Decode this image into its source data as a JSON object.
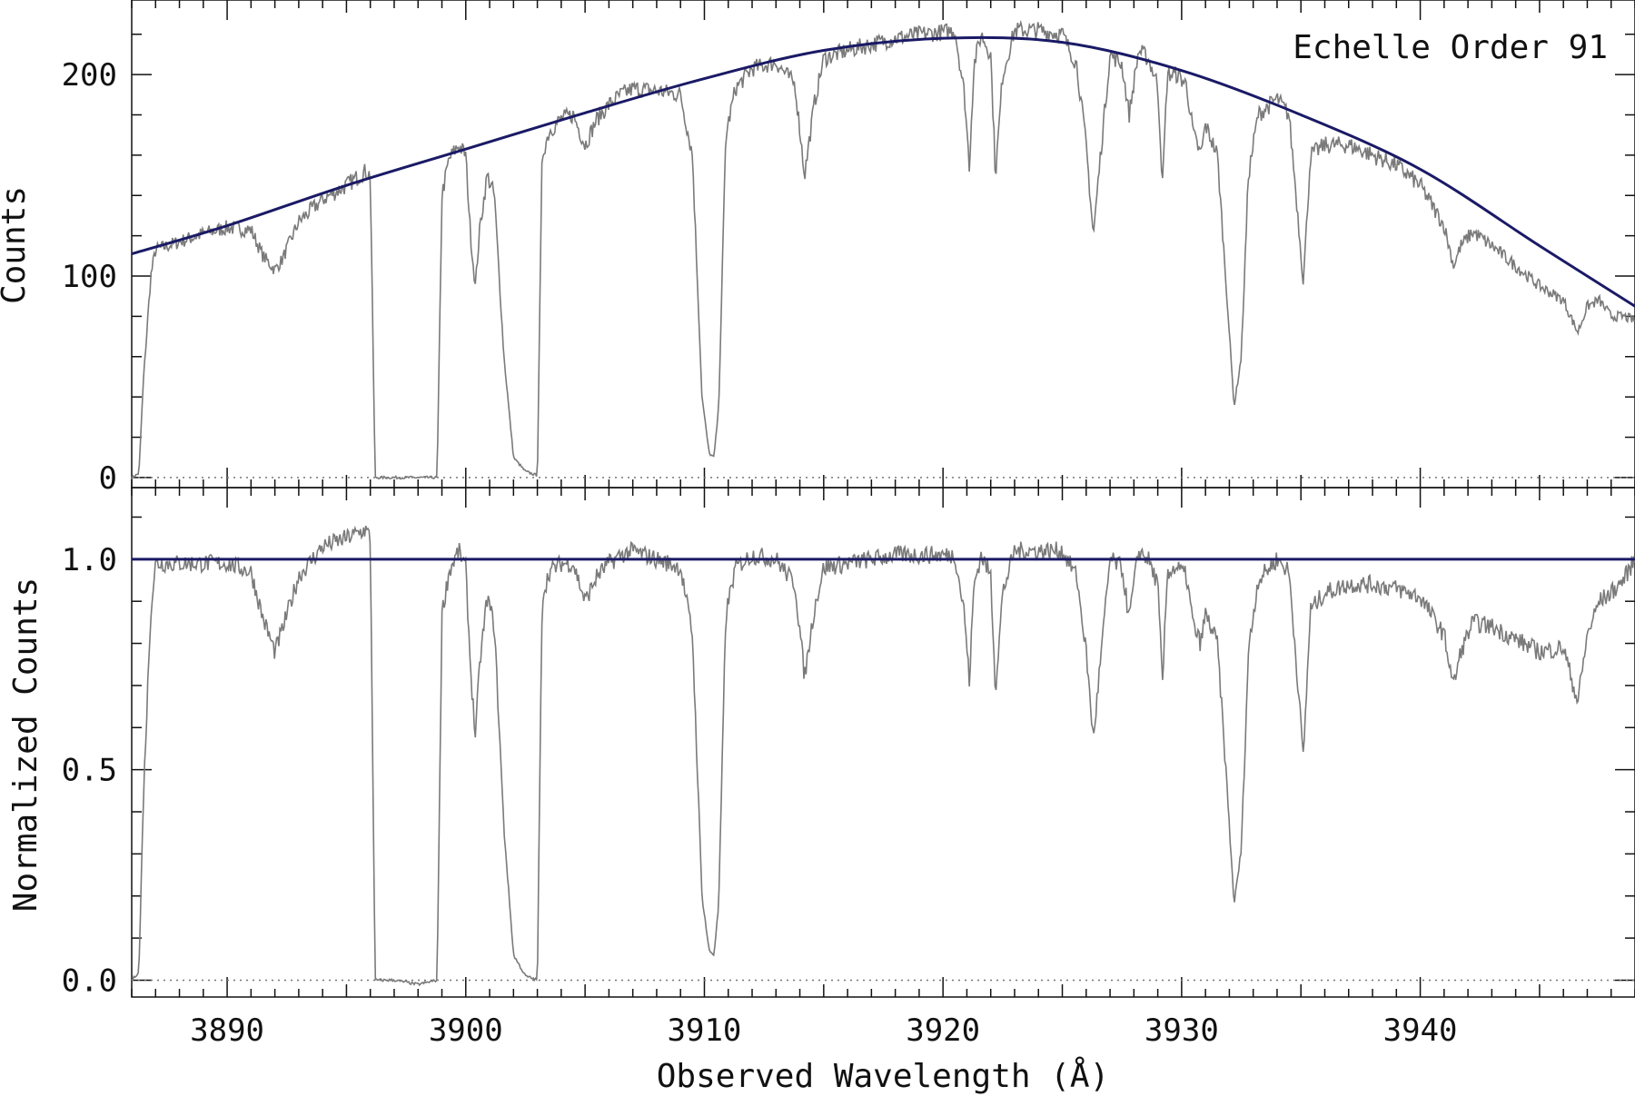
{
  "chart_data": [
    {
      "panel": "top",
      "type": "line",
      "title": "Echelle Order 91",
      "xlabel": "",
      "ylabel": "Counts",
      "xlim": [
        3886,
        3949
      ],
      "ylim": [
        -5,
        237
      ],
      "x_ticks": [
        3890,
        3900,
        3910,
        3920,
        3930,
        3940
      ],
      "x_tick_labels": [
        "",
        "",
        "",
        "",
        "",
        ""
      ],
      "y_ticks": [
        0,
        100,
        200
      ],
      "y_tick_labels": [
        "0",
        "100",
        "200"
      ],
      "zero_line": 0,
      "series": [
        {
          "name": "observed spectrum",
          "color": "#7a7a7a",
          "x": [
            3886.0,
            3886.3,
            3886.5,
            3886.8,
            3887.0,
            3888.0,
            3889.0,
            3890.0,
            3891.0,
            3891.5,
            3892.0,
            3892.3,
            3893.0,
            3894.0,
            3895.0,
            3895.8,
            3896.0,
            3896.2,
            3897.0,
            3898.0,
            3898.8,
            3899.0,
            3899.3,
            3899.7,
            3900.0,
            3900.2,
            3900.4,
            3900.6,
            3900.9,
            3901.2,
            3901.6,
            3902.0,
            3902.5,
            3903.0,
            3903.2,
            3903.5,
            3904.0,
            3904.5,
            3905.0,
            3905.5,
            3906.0,
            3906.5,
            3907.0,
            3908.0,
            3909.0,
            3909.5,
            3909.9,
            3910.2,
            3910.4,
            3910.6,
            3910.9,
            3911.3,
            3912.0,
            3913.0,
            3913.8,
            3914.2,
            3914.6,
            3915.0,
            3916.0,
            3917.0,
            3918.0,
            3919.0,
            3920.0,
            3920.5,
            3920.9,
            3921.1,
            3921.3,
            3921.6,
            3922.0,
            3922.2,
            3922.5,
            3923.0,
            3924.0,
            3925.0,
            3925.6,
            3926.0,
            3926.3,
            3926.6,
            3927.0,
            3927.5,
            3927.8,
            3928.2,
            3928.6,
            3929.0,
            3929.2,
            3929.4,
            3929.8,
            3930.2,
            3930.5,
            3930.8,
            3931.0,
            3931.5,
            3931.9,
            3932.2,
            3932.5,
            3932.8,
            3933.2,
            3934.0,
            3934.5,
            3934.8,
            3935.1,
            3935.4,
            3936.0,
            3937.0,
            3938.0,
            3939.0,
            3940.0,
            3941.0,
            3941.4,
            3941.7,
            3942.2,
            3943.0,
            3944.0,
            3945.0,
            3946.0,
            3946.6,
            3947.0,
            3947.5,
            3948.0,
            3948.5,
            3949.0
          ],
          "y": [
            0,
            2,
            50,
            100,
            113,
            117,
            121,
            124,
            123,
            110,
            103,
            108,
            127,
            138,
            145,
            152,
            150,
            0,
            0,
            0,
            0,
            140,
            158,
            165,
            160,
            120,
            95,
            125,
            150,
            140,
            60,
            10,
            3,
            1,
            160,
            172,
            178,
            180,
            165,
            178,
            185,
            190,
            193,
            192,
            190,
            160,
            40,
            12,
            10,
            35,
            170,
            193,
            203,
            206,
            195,
            150,
            185,
            208,
            212,
            215,
            218,
            220,
            221,
            222,
            190,
            155,
            205,
            220,
            210,
            150,
            200,
            222,
            222,
            220,
            205,
            165,
            120,
            160,
            210,
            205,
            180,
            212,
            208,
            195,
            145,
            200,
            200,
            195,
            170,
            160,
            175,
            160,
            90,
            35,
            60,
            150,
            180,
            188,
            180,
            140,
            97,
            160,
            165,
            165,
            160,
            155,
            145,
            125,
            105,
            115,
            122,
            115,
            105,
            95,
            88,
            72,
            85,
            88,
            80,
            80,
            78
          ]
        },
        {
          "name": "continuum fit",
          "color": "#1a1a66",
          "x": [
            3886,
            3890,
            3895,
            3900,
            3905,
            3910,
            3915,
            3920,
            3925,
            3930,
            3935,
            3940,
            3945,
            3949
          ],
          "y": [
            111,
            125,
            145,
            163,
            181,
            198,
            212,
            218,
            216,
            202,
            180,
            153,
            115,
            85
          ]
        }
      ]
    },
    {
      "panel": "bottom",
      "type": "line",
      "title": "",
      "xlabel": "Observed Wavelength (Å)",
      "ylabel": "Normalized Counts",
      "xlim": [
        3886,
        3949
      ],
      "ylim": [
        -0.04,
        1.17
      ],
      "x_ticks": [
        3890,
        3900,
        3910,
        3920,
        3930,
        3940
      ],
      "x_tick_labels": [
        "3890",
        "3900",
        "3910",
        "3920",
        "3930",
        "3940"
      ],
      "y_ticks": [
        0.0,
        0.5,
        1.0
      ],
      "y_tick_labels": [
        "0.0",
        "0.5",
        "1.0"
      ],
      "zero_line": 0.0,
      "series": [
        {
          "name": "normalized spectrum",
          "color": "#7a7a7a",
          "x": [
            3886.0,
            3886.3,
            3886.5,
            3886.8,
            3887.0,
            3888.0,
            3889.0,
            3890.0,
            3891.0,
            3891.5,
            3892.0,
            3892.3,
            3893.0,
            3894.0,
            3895.0,
            3895.8,
            3896.0,
            3896.2,
            3897.0,
            3898.0,
            3898.8,
            3899.0,
            3899.3,
            3899.7,
            3900.0,
            3900.2,
            3900.4,
            3900.6,
            3900.9,
            3901.2,
            3901.6,
            3902.0,
            3902.5,
            3903.0,
            3903.2,
            3903.5,
            3904.0,
            3904.5,
            3905.0,
            3905.5,
            3906.0,
            3906.5,
            3907.0,
            3908.0,
            3909.0,
            3909.5,
            3909.9,
            3910.2,
            3910.4,
            3910.6,
            3910.9,
            3911.3,
            3912.0,
            3913.0,
            3913.8,
            3914.2,
            3914.6,
            3915.0,
            3916.0,
            3917.0,
            3918.0,
            3919.0,
            3920.0,
            3920.5,
            3920.9,
            3921.1,
            3921.3,
            3921.6,
            3922.0,
            3922.2,
            3922.5,
            3923.0,
            3924.0,
            3925.0,
            3925.6,
            3926.0,
            3926.3,
            3926.6,
            3927.0,
            3927.5,
            3927.8,
            3928.2,
            3928.6,
            3929.0,
            3929.2,
            3929.4,
            3929.8,
            3930.2,
            3930.5,
            3930.8,
            3931.0,
            3931.5,
            3931.9,
            3932.2,
            3932.5,
            3932.8,
            3933.2,
            3934.0,
            3934.5,
            3934.8,
            3935.1,
            3935.4,
            3936.0,
            3937.0,
            3938.0,
            3939.0,
            3940.0,
            3941.0,
            3941.4,
            3941.7,
            3942.2,
            3943.0,
            3944.0,
            3945.0,
            3946.0,
            3946.6,
            3947.0,
            3947.5,
            3948.0,
            3948.5,
            3949.0
          ],
          "y": [
            0.0,
            0.02,
            0.45,
            0.88,
            0.99,
            0.99,
            0.99,
            0.99,
            0.97,
            0.86,
            0.78,
            0.83,
            0.96,
            1.03,
            1.05,
            1.07,
            1.05,
            0.0,
            0.0,
            -0.01,
            0.0,
            0.87,
            0.97,
            1.02,
            0.98,
            0.74,
            0.58,
            0.76,
            0.91,
            0.84,
            0.36,
            0.06,
            0.01,
            0.0,
            0.91,
            0.97,
            0.99,
            0.99,
            0.9,
            0.96,
            0.99,
            1.01,
            1.02,
            1.0,
            0.98,
            0.82,
            0.2,
            0.07,
            0.06,
            0.18,
            0.87,
            0.98,
            1.01,
            1.0,
            0.94,
            0.72,
            0.88,
            0.98,
            0.99,
            1.0,
            1.01,
            1.01,
            1.01,
            1.01,
            0.87,
            0.71,
            0.94,
            1.01,
            0.96,
            0.69,
            0.92,
            1.02,
            1.02,
            1.02,
            0.96,
            0.78,
            0.57,
            0.76,
            1.0,
            0.98,
            0.86,
            1.02,
            1.0,
            0.94,
            0.7,
            0.97,
            0.98,
            0.96,
            0.84,
            0.8,
            0.87,
            0.8,
            0.46,
            0.18,
            0.31,
            0.78,
            0.95,
            1.0,
            0.97,
            0.76,
            0.53,
            0.88,
            0.92,
            0.94,
            0.94,
            0.93,
            0.91,
            0.82,
            0.7,
            0.78,
            0.85,
            0.84,
            0.81,
            0.78,
            0.79,
            0.66,
            0.82,
            0.9,
            0.92,
            0.95,
            1.0
          ]
        },
        {
          "name": "unit continuum",
          "color": "#1a1a66",
          "x": [
            3886,
            3949
          ],
          "y": [
            1.0,
            1.0
          ]
        }
      ]
    }
  ]
}
